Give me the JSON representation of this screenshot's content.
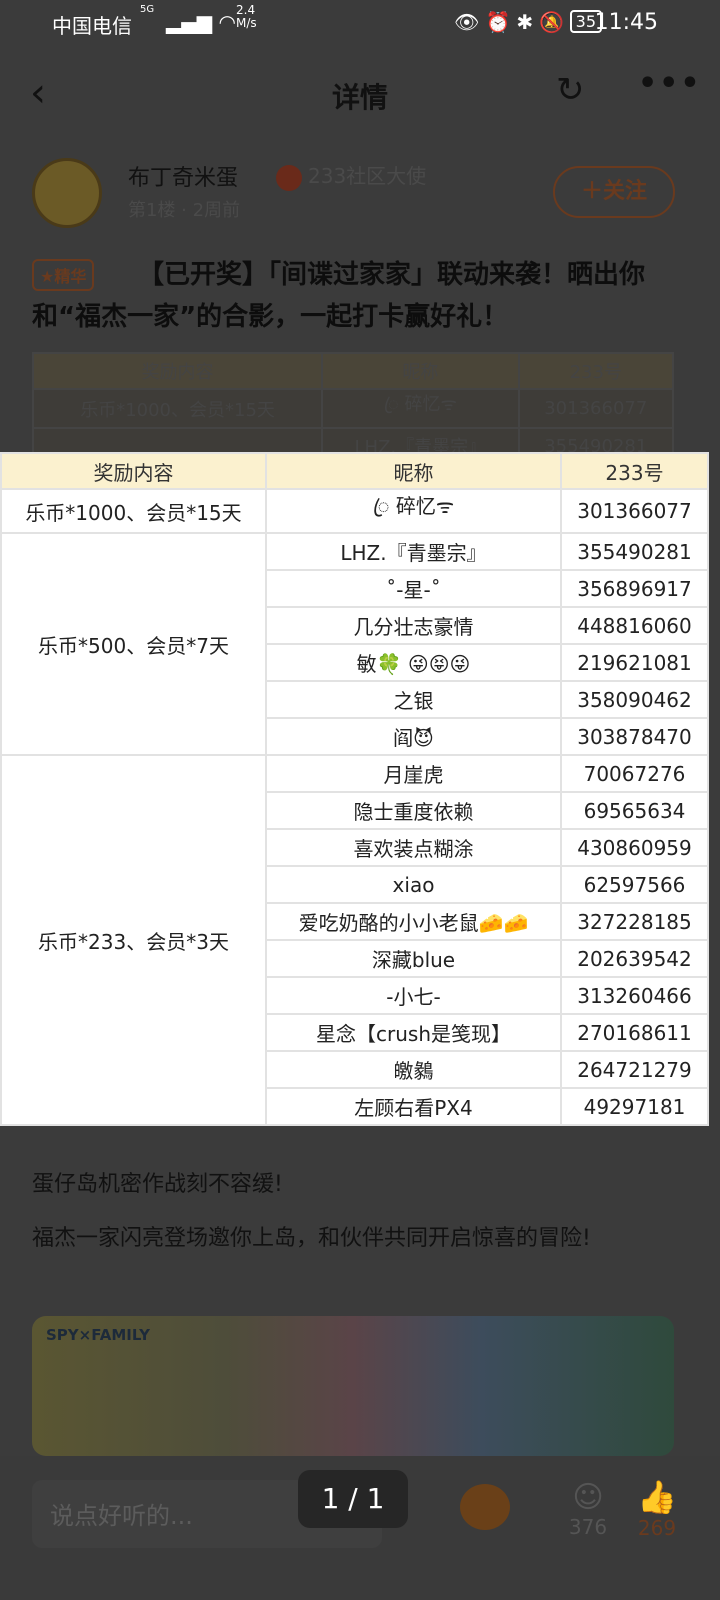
{
  "status_bar": {
    "carrier": "中国电信",
    "network": "5G",
    "speed": "2.4 M/s",
    "battery": "35",
    "time": "11:45"
  },
  "nav": {
    "title": "详情",
    "back_icon": "chevron-left-icon",
    "share_icon": "share-icon",
    "more_icon": "more-icon"
  },
  "author": {
    "name": "布丁奇米蛋",
    "badge": "233社区大使",
    "meta": "第1楼 · 2周前",
    "follow": "＋关注"
  },
  "post": {
    "essence_tag": "★精华",
    "title": "【已开奖】「间谍过家家」联动来袭！晒出你和“福杰一家”的合影，一起打卡赢好礼！",
    "para1": "蛋仔岛机密作战刻不容缓!",
    "para2": "福杰一家闪亮登场邀你上岛，和伙伴共同开启惊喜的冒险!",
    "banner_logo": "SPY×FAMILY"
  },
  "table": {
    "headers": [
      "奖励内容",
      "昵称",
      "233号"
    ],
    "groups": [
      {
        "reward": "乐币*1000、会员*15天",
        "rows": [
          [
            "ꦿ 碎忆ᯤ",
            "301366077"
          ]
        ]
      },
      {
        "reward": "乐币*500、会员*7天",
        "rows": [
          [
            "LHZ.『青墨宗』",
            "355490281"
          ],
          [
            "˚-星-˚",
            "356896917"
          ],
          [
            "几分壮志豪情",
            "448816060"
          ],
          [
            "敏🍀 😜😝😜",
            "219621081"
          ],
          [
            "之银",
            "358090462"
          ],
          [
            "阎😈",
            "303878470"
          ]
        ]
      },
      {
        "reward": "乐币*233、会员*3天",
        "rows": [
          [
            "月崖虎",
            "70067276"
          ],
          [
            "隐士重度依赖",
            "69565634"
          ],
          [
            "喜欢装点糊涂",
            "430860959"
          ],
          [
            "xiao",
            "62597566"
          ],
          [
            "爱吃奶酪的小小老鼠🧀🧀",
            "327228185"
          ],
          [
            "深藏blue",
            "202639542"
          ],
          [
            "-小七-",
            "313260466"
          ],
          [
            "星念【crush是笺现】",
            "270168611"
          ],
          [
            "皦鶨",
            "264721279"
          ],
          [
            "左顾右看PX4",
            "49297181"
          ]
        ]
      }
    ]
  },
  "bottom": {
    "placeholder": "说点好听的...",
    "pager": "1 / 1",
    "comments": "376",
    "likes": "269"
  },
  "colors": {
    "accent": "#ff7a1a",
    "header_bg": "#fbf1cf"
  }
}
